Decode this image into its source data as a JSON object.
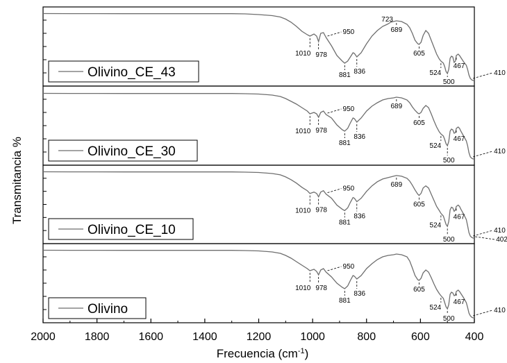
{
  "chart_data": [
    {
      "type": "line",
      "legend": "Olivino_CE_43",
      "x": [
        2000,
        1900,
        1800,
        1700,
        1600,
        1500,
        1400,
        1300,
        1250,
        1200,
        1150,
        1120,
        1100,
        1080,
        1060,
        1040,
        1020,
        1010,
        995,
        985,
        978,
        970,
        960,
        950,
        930,
        910,
        890,
        881,
        870,
        860,
        850,
        845,
        836,
        820,
        800,
        780,
        760,
        740,
        723,
        710,
        700,
        689,
        670,
        650,
        640,
        630,
        620,
        610,
        605,
        598,
        590,
        580,
        570,
        560,
        550,
        540,
        530,
        524,
        515,
        510,
        505,
        500,
        495,
        490,
        485,
        480,
        475,
        470,
        467,
        460,
        455,
        450,
        440,
        430,
        425,
        420,
        415,
        410,
        405,
        402,
        400
      ],
      "y": [
        0.985,
        0.984,
        0.984,
        0.983,
        0.983,
        0.983,
        0.983,
        0.983,
        0.98,
        0.97,
        0.955,
        0.935,
        0.905,
        0.86,
        0.8,
        0.73,
        0.68,
        0.66,
        0.69,
        0.66,
        0.58,
        0.7,
        0.71,
        0.64,
        0.52,
        0.38,
        0.3,
        0.27,
        0.3,
        0.36,
        0.42,
        0.41,
        0.36,
        0.42,
        0.55,
        0.66,
        0.74,
        0.8,
        0.83,
        0.86,
        0.87,
        0.88,
        0.87,
        0.83,
        0.78,
        0.7,
        0.6,
        0.55,
        0.54,
        0.57,
        0.67,
        0.74,
        0.7,
        0.6,
        0.5,
        0.4,
        0.33,
        0.3,
        0.27,
        0.22,
        0.15,
        0.12,
        0.18,
        0.34,
        0.37,
        0.36,
        0.28,
        0.3,
        0.38,
        0.4,
        0.38,
        0.35,
        0.29,
        0.24,
        0.18,
        0.1,
        0.05,
        0.03,
        0.02,
        0.02,
        0.02
      ],
      "peak_labels": [
        "1010",
        "978",
        "950",
        "881",
        "836",
        "723",
        "689",
        "605",
        "524",
        "500",
        "467",
        "410"
      ]
    },
    {
      "type": "line",
      "legend": "Olivino_CE_30",
      "x": [
        2000,
        1900,
        1800,
        1700,
        1600,
        1500,
        1400,
        1300,
        1250,
        1200,
        1150,
        1120,
        1100,
        1080,
        1060,
        1040,
        1020,
        1010,
        995,
        985,
        978,
        970,
        960,
        950,
        930,
        910,
        890,
        881,
        870,
        860,
        850,
        845,
        836,
        820,
        800,
        780,
        760,
        740,
        720,
        700,
        689,
        670,
        650,
        640,
        630,
        620,
        610,
        605,
        598,
        590,
        580,
        570,
        560,
        550,
        540,
        530,
        524,
        515,
        510,
        505,
        500,
        495,
        490,
        485,
        480,
        475,
        470,
        467,
        460,
        455,
        450,
        440,
        430,
        425,
        420,
        415,
        410,
        405,
        402,
        400
      ],
      "y": [
        0.975,
        0.974,
        0.974,
        0.973,
        0.973,
        0.973,
        0.973,
        0.973,
        0.97,
        0.965,
        0.95,
        0.93,
        0.9,
        0.86,
        0.82,
        0.77,
        0.72,
        0.68,
        0.7,
        0.68,
        0.63,
        0.7,
        0.72,
        0.67,
        0.62,
        0.52,
        0.45,
        0.43,
        0.47,
        0.55,
        0.62,
        0.61,
        0.56,
        0.62,
        0.72,
        0.79,
        0.84,
        0.88,
        0.9,
        0.91,
        0.92,
        0.91,
        0.88,
        0.84,
        0.78,
        0.73,
        0.69,
        0.68,
        0.7,
        0.76,
        0.8,
        0.77,
        0.68,
        0.58,
        0.49,
        0.42,
        0.39,
        0.36,
        0.31,
        0.25,
        0.22,
        0.28,
        0.43,
        0.46,
        0.45,
        0.4,
        0.41,
        0.47,
        0.49,
        0.47,
        0.43,
        0.36,
        0.29,
        0.22,
        0.12,
        0.06,
        0.04,
        0.03,
        0.03,
        0.03
      ],
      "peak_labels": [
        "1010",
        "978",
        "950",
        "881",
        "836",
        "689",
        "605",
        "524",
        "500",
        "467",
        "410"
      ]
    },
    {
      "type": "line",
      "legend": "Olivino_CE_10",
      "x": [
        2000,
        1900,
        1800,
        1700,
        1600,
        1500,
        1400,
        1300,
        1250,
        1200,
        1150,
        1120,
        1100,
        1080,
        1060,
        1040,
        1020,
        1010,
        995,
        985,
        978,
        970,
        960,
        950,
        930,
        910,
        890,
        881,
        870,
        860,
        850,
        845,
        836,
        820,
        800,
        780,
        760,
        740,
        720,
        700,
        689,
        670,
        650,
        640,
        630,
        620,
        610,
        605,
        598,
        590,
        580,
        570,
        560,
        550,
        540,
        530,
        524,
        515,
        510,
        505,
        500,
        495,
        490,
        485,
        480,
        475,
        470,
        467,
        460,
        455,
        450,
        440,
        430,
        425,
        420,
        415,
        410,
        405,
        402,
        400
      ],
      "y": [
        0.985,
        0.984,
        0.984,
        0.983,
        0.983,
        0.983,
        0.983,
        0.983,
        0.98,
        0.975,
        0.96,
        0.94,
        0.91,
        0.87,
        0.82,
        0.76,
        0.71,
        0.67,
        0.69,
        0.67,
        0.62,
        0.69,
        0.71,
        0.66,
        0.6,
        0.5,
        0.44,
        0.42,
        0.46,
        0.54,
        0.61,
        0.6,
        0.55,
        0.6,
        0.7,
        0.78,
        0.84,
        0.88,
        0.9,
        0.92,
        0.93,
        0.92,
        0.89,
        0.85,
        0.79,
        0.72,
        0.66,
        0.64,
        0.67,
        0.75,
        0.78,
        0.75,
        0.66,
        0.57,
        0.48,
        0.42,
        0.38,
        0.34,
        0.28,
        0.22,
        0.19,
        0.26,
        0.43,
        0.47,
        0.46,
        0.41,
        0.43,
        0.48,
        0.5,
        0.48,
        0.44,
        0.37,
        0.29,
        0.2,
        0.1,
        0.05,
        0.03,
        0.02,
        0.02,
        0.02
      ],
      "peak_labels": [
        "1010",
        "978",
        "950",
        "881",
        "836",
        "689",
        "605",
        "524",
        "500",
        "467",
        "410",
        "402"
      ]
    },
    {
      "type": "line",
      "legend": "Olivino",
      "x": [
        2000,
        1900,
        1800,
        1700,
        1600,
        1500,
        1400,
        1300,
        1250,
        1200,
        1150,
        1120,
        1100,
        1080,
        1060,
        1040,
        1020,
        1010,
        995,
        985,
        978,
        970,
        960,
        950,
        930,
        910,
        890,
        881,
        870,
        860,
        850,
        845,
        836,
        820,
        800,
        780,
        760,
        740,
        720,
        700,
        689,
        670,
        650,
        640,
        630,
        620,
        610,
        605,
        598,
        590,
        580,
        570,
        560,
        550,
        540,
        530,
        524,
        515,
        510,
        505,
        500,
        495,
        490,
        485,
        480,
        475,
        470,
        467,
        460,
        455,
        450,
        440,
        430,
        425,
        420,
        415,
        410,
        405,
        402,
        400
      ],
      "y": [
        0.985,
        0.984,
        0.984,
        0.983,
        0.983,
        0.983,
        0.983,
        0.983,
        0.98,
        0.975,
        0.96,
        0.94,
        0.91,
        0.87,
        0.82,
        0.77,
        0.72,
        0.69,
        0.71,
        0.68,
        0.63,
        0.7,
        0.72,
        0.67,
        0.6,
        0.51,
        0.45,
        0.43,
        0.47,
        0.55,
        0.62,
        0.61,
        0.57,
        0.62,
        0.72,
        0.79,
        0.85,
        0.89,
        0.91,
        0.92,
        0.93,
        0.92,
        0.89,
        0.83,
        0.73,
        0.62,
        0.56,
        0.55,
        0.58,
        0.66,
        0.7,
        0.67,
        0.59,
        0.5,
        0.42,
        0.36,
        0.33,
        0.29,
        0.23,
        0.17,
        0.14,
        0.2,
        0.35,
        0.38,
        0.37,
        0.33,
        0.34,
        0.39,
        0.41,
        0.39,
        0.36,
        0.3,
        0.23,
        0.16,
        0.08,
        0.04,
        0.02,
        0.01,
        0.01,
        0.01
      ],
      "peak_labels": [
        "1010",
        "978",
        "950",
        "881",
        "836",
        "605",
        "524",
        "500",
        "467",
        "410"
      ]
    }
  ],
  "axes": {
    "xlabel": "Frecuencia (cm",
    "xlabel_sup": "-1",
    "xlabel_end": ")",
    "ylabel": "Transmitancia %",
    "xlim": [
      2000,
      400
    ],
    "xticks": [
      "2000",
      "1800",
      "1600",
      "1400",
      "1200",
      "1000",
      "800",
      "600",
      "400"
    ],
    "line_color": "#6e6e6e"
  }
}
